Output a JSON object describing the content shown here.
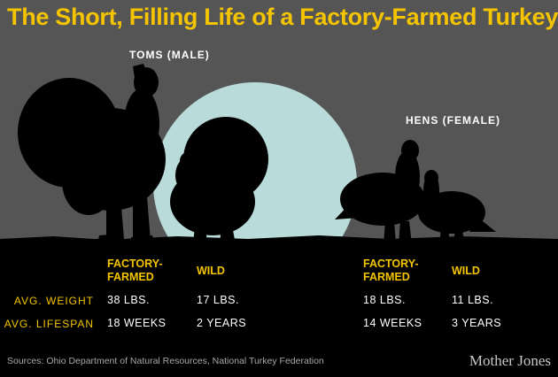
{
  "chart_data": {
    "type": "table",
    "title": "The Short, Filling Life of a Factory-Farmed Turkey",
    "groups": [
      {
        "label": "TOMS (MALE)",
        "columns": [
          {
            "header": "FACTORY-FARMED",
            "weight": "38 LBS.",
            "lifespan": "18 WEEKS"
          },
          {
            "header": "WILD",
            "weight": "17 LBS.",
            "lifespan": "2 YEARS"
          }
        ]
      },
      {
        "label": "HENS (FEMALE)",
        "columns": [
          {
            "header": "FACTORY-FARMED",
            "weight": "18 LBS.",
            "lifespan": "14 WEEKS"
          },
          {
            "header": "WILD",
            "weight": "11 LBS.",
            "lifespan": "3 YEARS"
          }
        ]
      }
    ],
    "row_labels": {
      "weight": "AVG. WEIGHT",
      "lifespan": "AVG. LIFESPAN"
    }
  },
  "source": "Sources: Ohio Department of Natural Resources,  National Turkey Federation",
  "brand": "Mother Jones",
  "colors": {
    "background": "#555556",
    "ground": "#000000",
    "moon": "#b9dcda",
    "title": "#f4c400",
    "text": "#ffffff"
  }
}
